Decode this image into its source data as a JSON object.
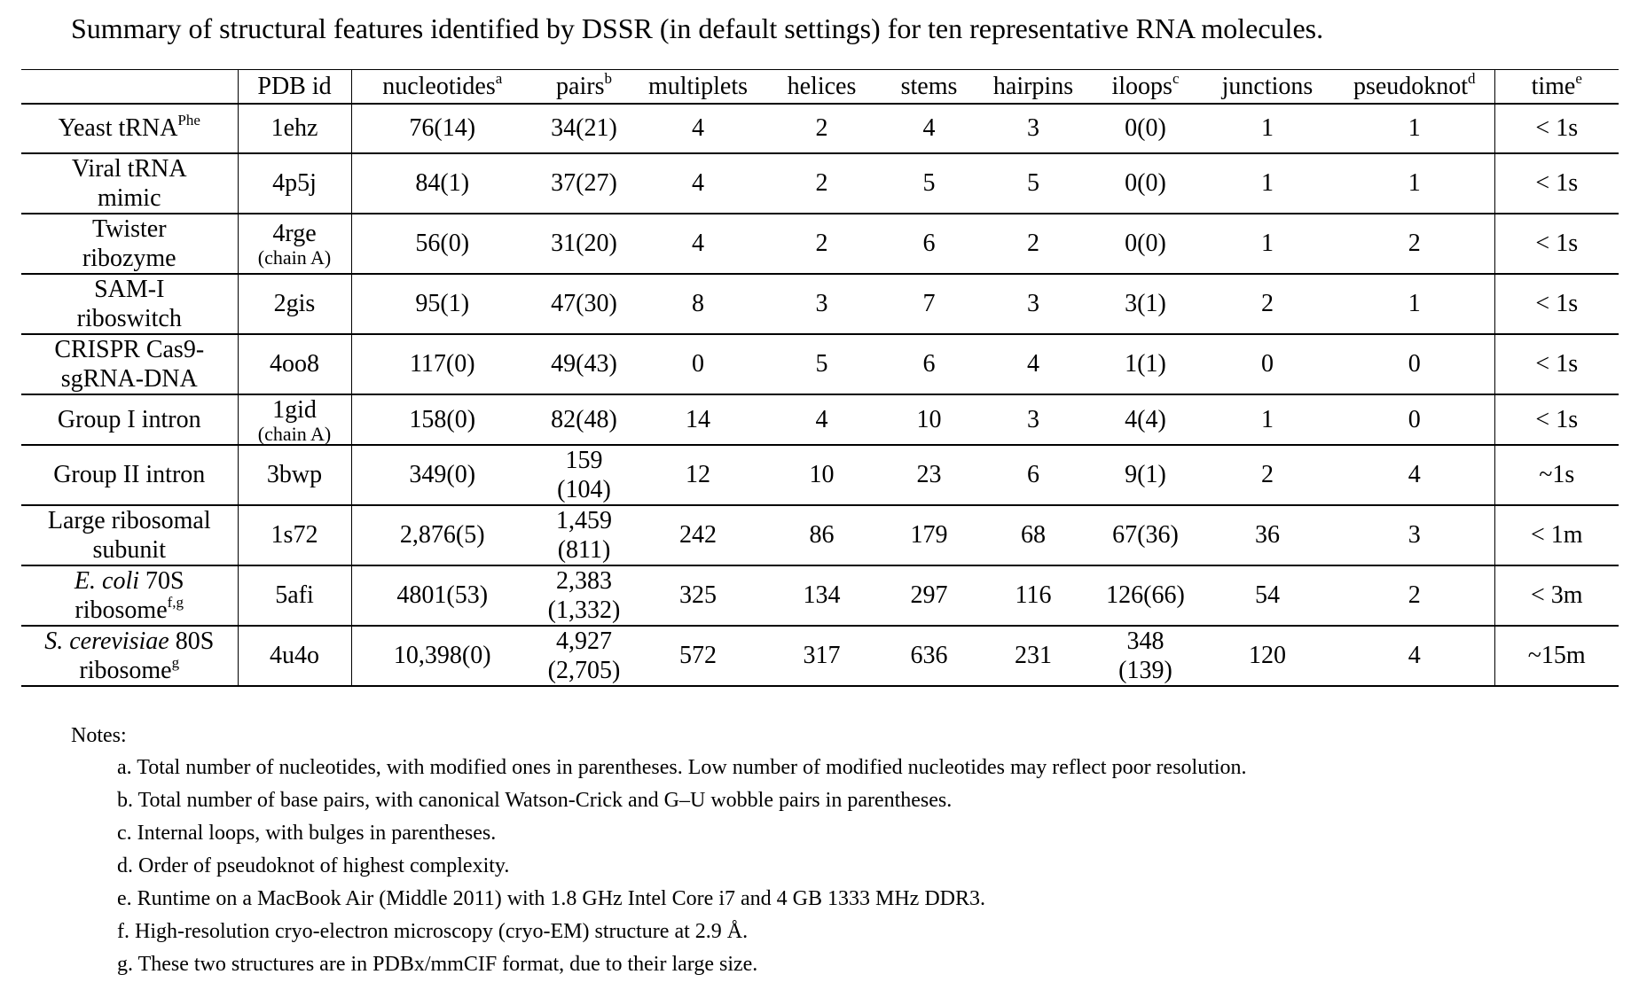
{
  "caption": "Summary of structural features identified by DSSR (in default settings) for ten representative RNA molecules.",
  "headers": [
    {
      "text": "",
      "sup": ""
    },
    {
      "text": "PDB id",
      "sup": ""
    },
    {
      "text": "nucleotides",
      "sup": "a"
    },
    {
      "text": "pairs",
      "sup": "b"
    },
    {
      "text": "multiplets",
      "sup": ""
    },
    {
      "text": "helices",
      "sup": ""
    },
    {
      "text": "stems",
      "sup": ""
    },
    {
      "text": "hairpins",
      "sup": ""
    },
    {
      "text": "iloops",
      "sup": "c"
    },
    {
      "text": "junctions",
      "sup": ""
    },
    {
      "text": "pseudoknot",
      "sup": "d"
    },
    {
      "text": "time",
      "sup": "e"
    }
  ],
  "rows": [
    {
      "molecule": {
        "line1": "Yeast tRNA",
        "line1_italic_prefix": "",
        "line1_sup": "Phe",
        "line2": "",
        "line2_sup": ""
      },
      "pdb": "1ehz",
      "pdb_note": "",
      "nucleotides": "76(14)",
      "pairs": [
        "34(21)"
      ],
      "multiplets": "4",
      "helices": "2",
      "stems": "4",
      "hairpins": "3",
      "iloops": [
        "0(0)"
      ],
      "junctions": "1",
      "pseudoknot": "1",
      "time": "< 1s"
    },
    {
      "molecule": {
        "line1": "Viral tRNA",
        "line1_italic_prefix": "",
        "line1_sup": "",
        "line2": "mimic",
        "line2_sup": ""
      },
      "pdb": "4p5j",
      "pdb_note": "",
      "nucleotides": "84(1)",
      "pairs": [
        "37(27)"
      ],
      "multiplets": "4",
      "helices": "2",
      "stems": "5",
      "hairpins": "5",
      "iloops": [
        "0(0)"
      ],
      "junctions": "1",
      "pseudoknot": "1",
      "time": "< 1s"
    },
    {
      "molecule": {
        "line1": "Twister",
        "line1_italic_prefix": "",
        "line1_sup": "",
        "line2": "ribozyme",
        "line2_sup": ""
      },
      "pdb": "4rge",
      "pdb_note": "(chain A)",
      "nucleotides": "56(0)",
      "pairs": [
        "31(20)"
      ],
      "multiplets": "4",
      "helices": "2",
      "stems": "6",
      "hairpins": "2",
      "iloops": [
        "0(0)"
      ],
      "junctions": "1",
      "pseudoknot": "2",
      "time": "< 1s"
    },
    {
      "molecule": {
        "line1": "SAM-I",
        "line1_italic_prefix": "",
        "line1_sup": "",
        "line2": "riboswitch",
        "line2_sup": ""
      },
      "pdb": "2gis",
      "pdb_note": "",
      "nucleotides": "95(1)",
      "pairs": [
        "47(30)"
      ],
      "multiplets": "8",
      "helices": "3",
      "stems": "7",
      "hairpins": "3",
      "iloops": [
        "3(1)"
      ],
      "junctions": "2",
      "pseudoknot": "1",
      "time": "< 1s"
    },
    {
      "molecule": {
        "line1": "CRISPR Cas9-",
        "line1_italic_prefix": "",
        "line1_sup": "",
        "line2": "sgRNA-DNA",
        "line2_sup": ""
      },
      "pdb": "4oo8",
      "pdb_note": "",
      "nucleotides": "117(0)",
      "pairs": [
        "49(43)"
      ],
      "multiplets": "0",
      "helices": "5",
      "stems": "6",
      "hairpins": "4",
      "iloops": [
        "1(1)"
      ],
      "junctions": "0",
      "pseudoknot": "0",
      "time": "< 1s"
    },
    {
      "molecule": {
        "line1": "Group I intron",
        "line1_italic_prefix": "",
        "line1_sup": "",
        "line2": "",
        "line2_sup": ""
      },
      "pdb": "1gid",
      "pdb_note": "(chain A)",
      "nucleotides": "158(0)",
      "pairs": [
        "82(48)"
      ],
      "multiplets": "14",
      "helices": "4",
      "stems": "10",
      "hairpins": "3",
      "iloops": [
        "4(4)"
      ],
      "junctions": "1",
      "pseudoknot": "0",
      "time": "< 1s"
    },
    {
      "molecule": {
        "line1": "Group II intron",
        "line1_italic_prefix": "",
        "line1_sup": "",
        "line2": "",
        "line2_sup": ""
      },
      "pdb": "3bwp",
      "pdb_note": "",
      "nucleotides": "349(0)",
      "pairs": [
        "159",
        "(104)"
      ],
      "multiplets": "12",
      "helices": "10",
      "stems": "23",
      "hairpins": "6",
      "iloops": [
        "9(1)"
      ],
      "junctions": "2",
      "pseudoknot": "4",
      "time": "~1s"
    },
    {
      "molecule": {
        "line1": "Large ribosomal",
        "line1_italic_prefix": "",
        "line1_sup": "",
        "line2": "subunit",
        "line2_sup": ""
      },
      "pdb": "1s72",
      "pdb_note": "",
      "nucleotides": "2,876(5)",
      "pairs": [
        "1,459",
        "(811)"
      ],
      "multiplets": "242",
      "helices": "86",
      "stems": "179",
      "hairpins": "68",
      "iloops": [
        "67(36)"
      ],
      "junctions": "36",
      "pseudoknot": "3",
      "time": "< 1m"
    },
    {
      "molecule": {
        "line1": " 70S",
        "line1_italic_prefix": "E. coli",
        "line1_sup": "",
        "line2": "ribosome",
        "line2_sup": "f,g"
      },
      "pdb": "5afi",
      "pdb_note": "",
      "nucleotides": "4801(53)",
      "pairs": [
        "2,383",
        "(1,332)"
      ],
      "multiplets": "325",
      "helices": "134",
      "stems": "297",
      "hairpins": "116",
      "iloops": [
        "126(66)"
      ],
      "junctions": "54",
      "pseudoknot": "2",
      "time": "< 3m"
    },
    {
      "molecule": {
        "line1": " 80S",
        "line1_italic_prefix": "S. cerevisiae",
        "line1_sup": "",
        "line2": "ribosome",
        "line2_sup": "g"
      },
      "pdb": "4u4o",
      "pdb_note": "",
      "nucleotides": "10,398(0)",
      "pairs": [
        "4,927",
        "(2,705)"
      ],
      "multiplets": "572",
      "helices": "317",
      "stems": "636",
      "hairpins": "231",
      "iloops": [
        "348",
        "(139)"
      ],
      "junctions": "120",
      "pseudoknot": "4",
      "time": "~15m"
    }
  ],
  "notes": {
    "title": "Notes:",
    "items": [
      "a. Total number of nucleotides, with modified ones in parentheses. Low number of modified nucleotides may reflect poor resolution.",
      "b. Total number of base pairs, with canonical Watson-Crick and G–U wobble pairs in parentheses.",
      "c. Internal loops, with bulges in parentheses.",
      "d. Order of pseudoknot of highest complexity.",
      "e. Runtime on a MacBook Air (Middle 2011) with 1.8 GHz Intel Core i7 and 4 GB 1333 MHz DDR3.",
      "f. High-resolution cryo-electron microscopy (cryo-EM) structure at 2.9 Å.",
      "g. These two structures are in PDBx/mmCIF format, due to their large size."
    ]
  }
}
